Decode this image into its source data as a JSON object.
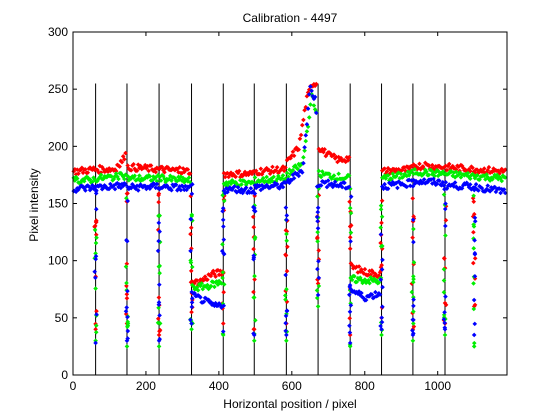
{
  "chart_data": {
    "type": "scatter",
    "title": "Calibration - 4497",
    "xlabel": "Horizontal position / pixel",
    "ylabel": "Pixel intensity",
    "xlim": [
      0,
      1190
    ],
    "ylim": [
      0,
      300
    ],
    "xticks": [
      0,
      200,
      400,
      600,
      800,
      1000
    ],
    "yticks": [
      0,
      50,
      100,
      150,
      200,
      250,
      300
    ],
    "grid": false,
    "vlines": [
      62,
      148,
      236,
      325,
      412,
      497,
      585,
      672,
      760,
      846,
      932,
      1020
    ],
    "vline_range": [
      0,
      255
    ],
    "colors": {
      "red": "#ff0000",
      "green": "#00ee00",
      "blue": "#0000ff",
      "line": "#000000"
    },
    "series": [
      {
        "color": "red",
        "segments": [
          [
            [
              0,
              178
            ],
            [
              62,
              180
            ]
          ],
          [
            [
              62,
              180
            ],
            [
              120,
              180
            ],
            [
              140,
              190
            ],
            [
              148,
              204
            ]
          ],
          [
            [
              148,
              182
            ],
            [
              236,
              180
            ]
          ],
          [
            [
              236,
              180
            ],
            [
              325,
              178
            ]
          ],
          [
            [
              325,
              80
            ],
            [
              350,
              82
            ],
            [
              380,
              88
            ],
            [
              412,
              90
            ]
          ],
          [
            [
              412,
              176
            ],
            [
              497,
              176
            ]
          ],
          [
            [
              497,
              178
            ],
            [
              585,
              180
            ]
          ],
          [
            [
              585,
              185
            ],
            [
              620,
              200
            ],
            [
              640,
              240
            ],
            [
              655,
              255
            ],
            [
              672,
              255
            ]
          ],
          [
            [
              672,
              200
            ],
            [
              700,
              192
            ],
            [
              730,
              188
            ],
            [
              760,
              190
            ]
          ],
          [
            [
              760,
              95
            ],
            [
              800,
              90
            ],
            [
              846,
              88
            ]
          ],
          [
            [
              846,
              178
            ],
            [
              932,
              180
            ]
          ],
          [
            [
              932,
              183
            ],
            [
              1020,
              182
            ]
          ],
          [
            [
              1020,
              182
            ],
            [
              1100,
              180
            ],
            [
              1190,
              178
            ]
          ]
        ],
        "dips": [
          [
            62,
            40
          ],
          [
            148,
            45
          ],
          [
            236,
            35
          ],
          [
            325,
            55
          ],
          [
            412,
            45
          ],
          [
            497,
            40
          ],
          [
            585,
            45
          ],
          [
            672,
            80
          ],
          [
            760,
            35
          ],
          [
            846,
            50
          ],
          [
            932,
            40
          ],
          [
            1020,
            45
          ],
          [
            1100,
            60
          ]
        ]
      },
      {
        "color": "green",
        "segments": [
          [
            [
              0,
              170
            ],
            [
              62,
              171
            ]
          ],
          [
            [
              62,
              172
            ],
            [
              148,
              174
            ]
          ],
          [
            [
              148,
              172
            ],
            [
              236,
              172
            ]
          ],
          [
            [
              236,
              172
            ],
            [
              325,
              170
            ]
          ],
          [
            [
              325,
              76
            ],
            [
              370,
              78
            ],
            [
              412,
              82
            ]
          ],
          [
            [
              412,
              168
            ],
            [
              497,
              168
            ]
          ],
          [
            [
              497,
              170
            ],
            [
              585,
              172
            ]
          ],
          [
            [
              585,
              175
            ],
            [
              630,
              185
            ],
            [
              655,
              245
            ],
            [
              672,
              220
            ]
          ],
          [
            [
              672,
              176
            ],
            [
              760,
              172
            ]
          ],
          [
            [
              760,
              84
            ],
            [
              846,
              82
            ]
          ],
          [
            [
              846,
              172
            ],
            [
              932,
              176
            ]
          ],
          [
            [
              932,
              178
            ],
            [
              1020,
              176
            ]
          ],
          [
            [
              1020,
              176
            ],
            [
              1100,
              174
            ],
            [
              1190,
              172
            ]
          ]
        ],
        "dips": [
          [
            62,
            30
          ],
          [
            148,
            25
          ],
          [
            236,
            25
          ],
          [
            325,
            40
          ],
          [
            412,
            35
          ],
          [
            497,
            30
          ],
          [
            585,
            30
          ],
          [
            672,
            60
          ],
          [
            760,
            25
          ],
          [
            846,
            35
          ],
          [
            932,
            30
          ],
          [
            1020,
            35
          ],
          [
            1100,
            25
          ]
        ]
      },
      {
        "color": "blue",
        "segments": [
          [
            [
              0,
              163
            ],
            [
              62,
              164
            ]
          ],
          [
            [
              62,
              164
            ],
            [
              148,
              166
            ]
          ],
          [
            [
              148,
              164
            ],
            [
              236,
              165
            ]
          ],
          [
            [
              236,
              165
            ],
            [
              325,
              163
            ]
          ],
          [
            [
              325,
              70
            ],
            [
              360,
              65
            ],
            [
              390,
              60
            ],
            [
              412,
              62
            ]
          ],
          [
            [
              412,
              162
            ],
            [
              497,
              162
            ]
          ],
          [
            [
              497,
              164
            ],
            [
              585,
              166
            ]
          ],
          [
            [
              585,
              168
            ],
            [
              630,
              180
            ],
            [
              650,
              252
            ],
            [
              665,
              240
            ],
            [
              672,
              210
            ]
          ],
          [
            [
              672,
              168
            ],
            [
              760,
              165
            ]
          ],
          [
            [
              760,
              75
            ],
            [
              800,
              68
            ],
            [
              846,
              72
            ]
          ],
          [
            [
              846,
              165
            ],
            [
              932,
              168
            ]
          ],
          [
            [
              932,
              170
            ],
            [
              1020,
              168
            ]
          ],
          [
            [
              1020,
              166
            ],
            [
              1100,
              165
            ],
            [
              1190,
              160
            ]
          ]
        ],
        "dips": [
          [
            62,
            28
          ],
          [
            148,
            30
          ],
          [
            236,
            30
          ],
          [
            325,
            45
          ],
          [
            412,
            38
          ],
          [
            497,
            35
          ],
          [
            585,
            35
          ],
          [
            672,
            70
          ],
          [
            760,
            28
          ],
          [
            846,
            40
          ],
          [
            932,
            35
          ],
          [
            1020,
            40
          ],
          [
            1100,
            35
          ]
        ]
      }
    ]
  }
}
